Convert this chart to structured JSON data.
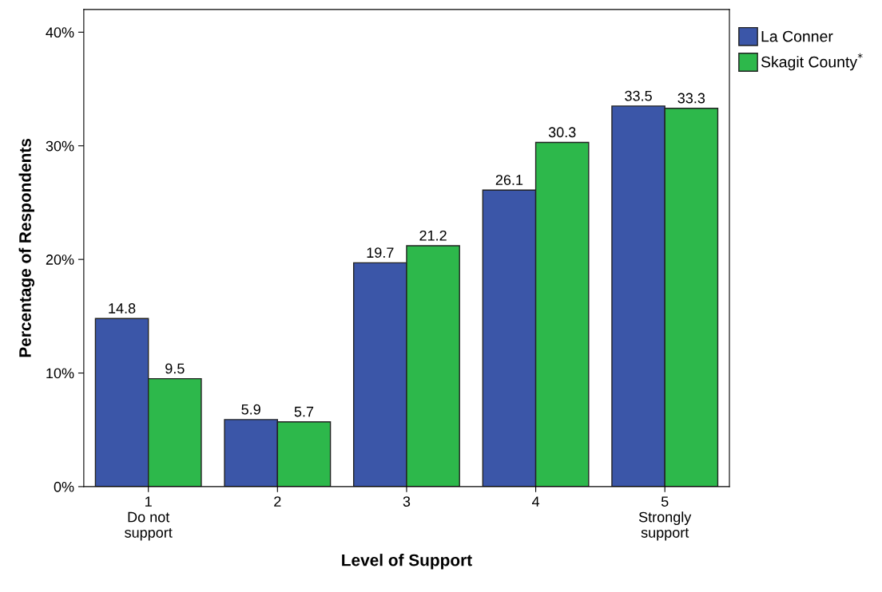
{
  "chart_data": {
    "type": "bar",
    "xlabel": "Level of Support",
    "ylabel": "Percentage of Respondents",
    "categories": [
      "1\nDo not\nsupport",
      "2",
      "3",
      "4",
      "5\nStrongly\nsupport"
    ],
    "series": [
      {
        "name": "La Conner",
        "color": "#3b56a8",
        "values": [
          14.8,
          5.9,
          19.7,
          26.1,
          33.5
        ]
      },
      {
        "name": "Skagit County$^{*}$",
        "color": "#2db84b",
        "values": [
          9.5,
          5.7,
          21.2,
          30.3,
          33.3
        ]
      }
    ],
    "ylim": [
      0,
      42
    ],
    "yticks": [
      {
        "value": 0,
        "label": "0%"
      },
      {
        "value": 10,
        "label": "10%"
      },
      {
        "value": 20,
        "label": "20%"
      },
      {
        "value": 30,
        "label": "30%"
      },
      {
        "value": 40,
        "label": "40%"
      }
    ],
    "data_labels": true,
    "grid": false,
    "legend": "top right"
  }
}
